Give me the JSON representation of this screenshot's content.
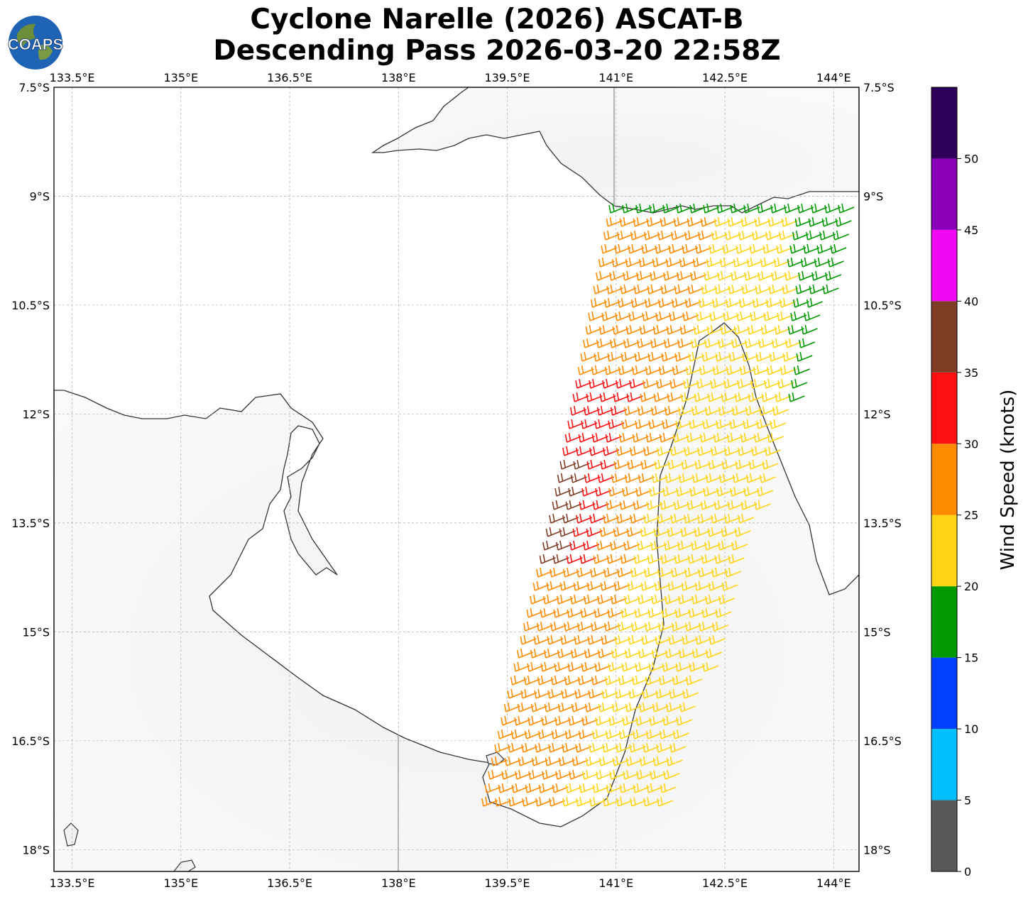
{
  "header": {
    "title_line1": "Cyclone Narelle (2026) ASCAT-B",
    "title_line2": "Descending Pass 2026-03-20 22:58Z",
    "logo_text": "COAPS"
  },
  "map": {
    "lon_ticks": [
      "133.5°E",
      "135°E",
      "136.5°E",
      "138°E",
      "139.5°E",
      "141°E",
      "142.5°E",
      "144°E"
    ],
    "lat_ticks": [
      "7.5°S",
      "9°S",
      "10.5°S",
      "12°S",
      "13.5°S",
      "15°S",
      "16.5°S",
      "18°S"
    ],
    "lon_range": [
      133.25,
      144.35
    ],
    "lat_range": [
      7.5,
      18.3
    ],
    "background": "grayscale land topography with light-gray shading",
    "grid": true
  },
  "colorbar": {
    "label": "Wind Speed (knots)",
    "ticks": [
      "0",
      "5",
      "10",
      "15",
      "20",
      "25",
      "30",
      "35",
      "40",
      "45",
      "50"
    ],
    "bins": [
      {
        "min": 0,
        "max": 5,
        "color": "#595959"
      },
      {
        "min": 5,
        "max": 10,
        "color": "#00bfff"
      },
      {
        "min": 10,
        "max": 15,
        "color": "#0040ff"
      },
      {
        "min": 15,
        "max": 20,
        "color": "#009900"
      },
      {
        "min": 20,
        "max": 25,
        "color": "#ffd415"
      },
      {
        "min": 25,
        "max": 30,
        "color": "#ff8c00"
      },
      {
        "min": 30,
        "max": 35,
        "color": "#ff1010"
      },
      {
        "min": 35,
        "max": 40,
        "color": "#803d26"
      },
      {
        "min": 40,
        "max": 45,
        "color": "#f207f2"
      },
      {
        "min": 45,
        "max": 50,
        "color": "#8a00b8"
      },
      {
        "min": 50,
        "max": 55,
        "color": "#2e0059"
      }
    ]
  }
}
